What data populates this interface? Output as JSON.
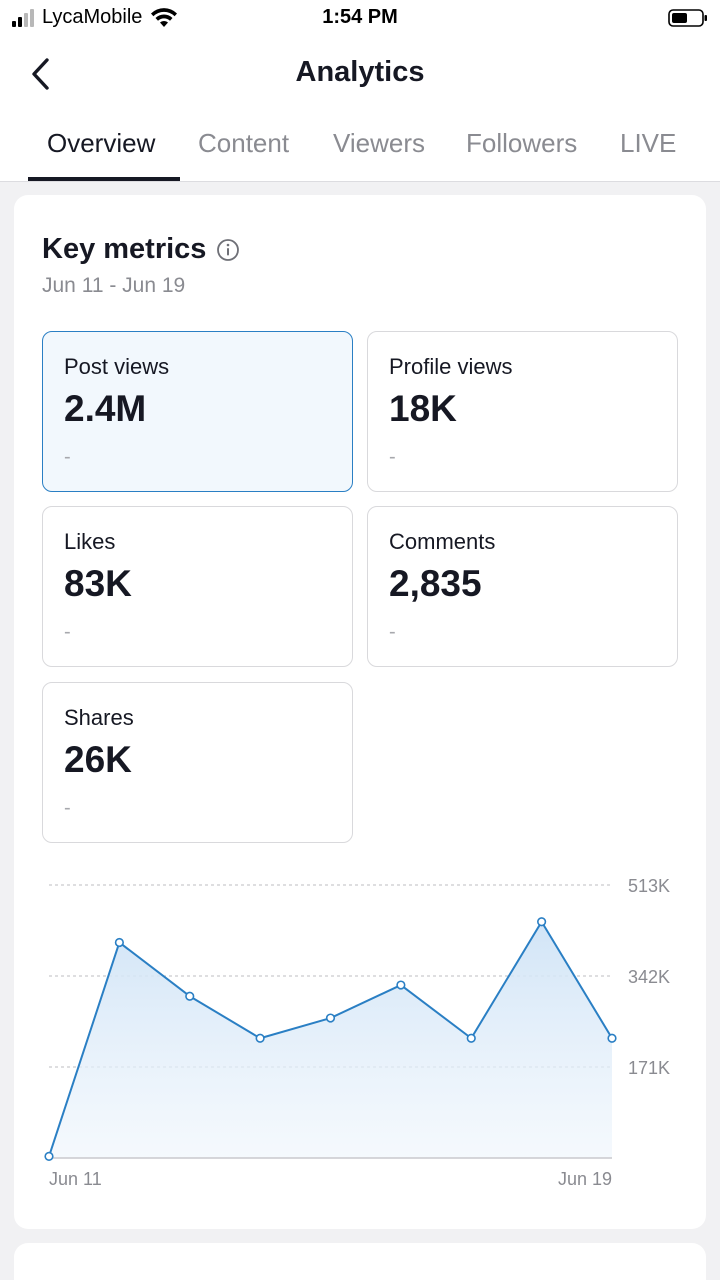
{
  "status_bar": {
    "carrier": "LycaMobile",
    "time": "1:54 PM"
  },
  "header": {
    "title": "Analytics"
  },
  "tabs": [
    {
      "label": "Overview",
      "active": true
    },
    {
      "label": "Content",
      "active": false
    },
    {
      "label": "Viewers",
      "active": false
    },
    {
      "label": "Followers",
      "active": false
    },
    {
      "label": "LIVE",
      "active": false
    }
  ],
  "key_metrics": {
    "title": "Key metrics",
    "date_range": "Jun 11 - Jun 19",
    "metrics": [
      {
        "label": "Post views",
        "value": "2.4M",
        "change": "-",
        "selected": true
      },
      {
        "label": "Profile views",
        "value": "18K",
        "change": "-",
        "selected": false
      },
      {
        "label": "Likes",
        "value": "83K",
        "change": "-",
        "selected": false
      },
      {
        "label": "Comments",
        "value": "2,835",
        "change": "-",
        "selected": false
      },
      {
        "label": "Shares",
        "value": "26K",
        "change": "-",
        "selected": false
      }
    ]
  },
  "colors": {
    "accent": "#2a7fc4",
    "tab_inactive": "#8a8b91",
    "text": "#161823"
  },
  "chart_data": {
    "type": "area",
    "x": [
      "Jun 11",
      "Jun 12",
      "Jun 13",
      "Jun 14",
      "Jun 15",
      "Jun 16",
      "Jun 17",
      "Jun 18",
      "Jun 19"
    ],
    "values": [
      3000,
      405000,
      304000,
      225000,
      263000,
      325000,
      225000,
      444000,
      225000
    ],
    "x_tick_labels": [
      "Jun 11",
      "Jun 19"
    ],
    "y_tick_values": [
      171000,
      342000,
      513000
    ],
    "y_tick_labels": [
      "171K",
      "342K",
      "513K"
    ],
    "ylim": [
      0,
      513000
    ],
    "grid": "dashed horizontal",
    "title": "",
    "xlabel": "",
    "ylabel": ""
  }
}
